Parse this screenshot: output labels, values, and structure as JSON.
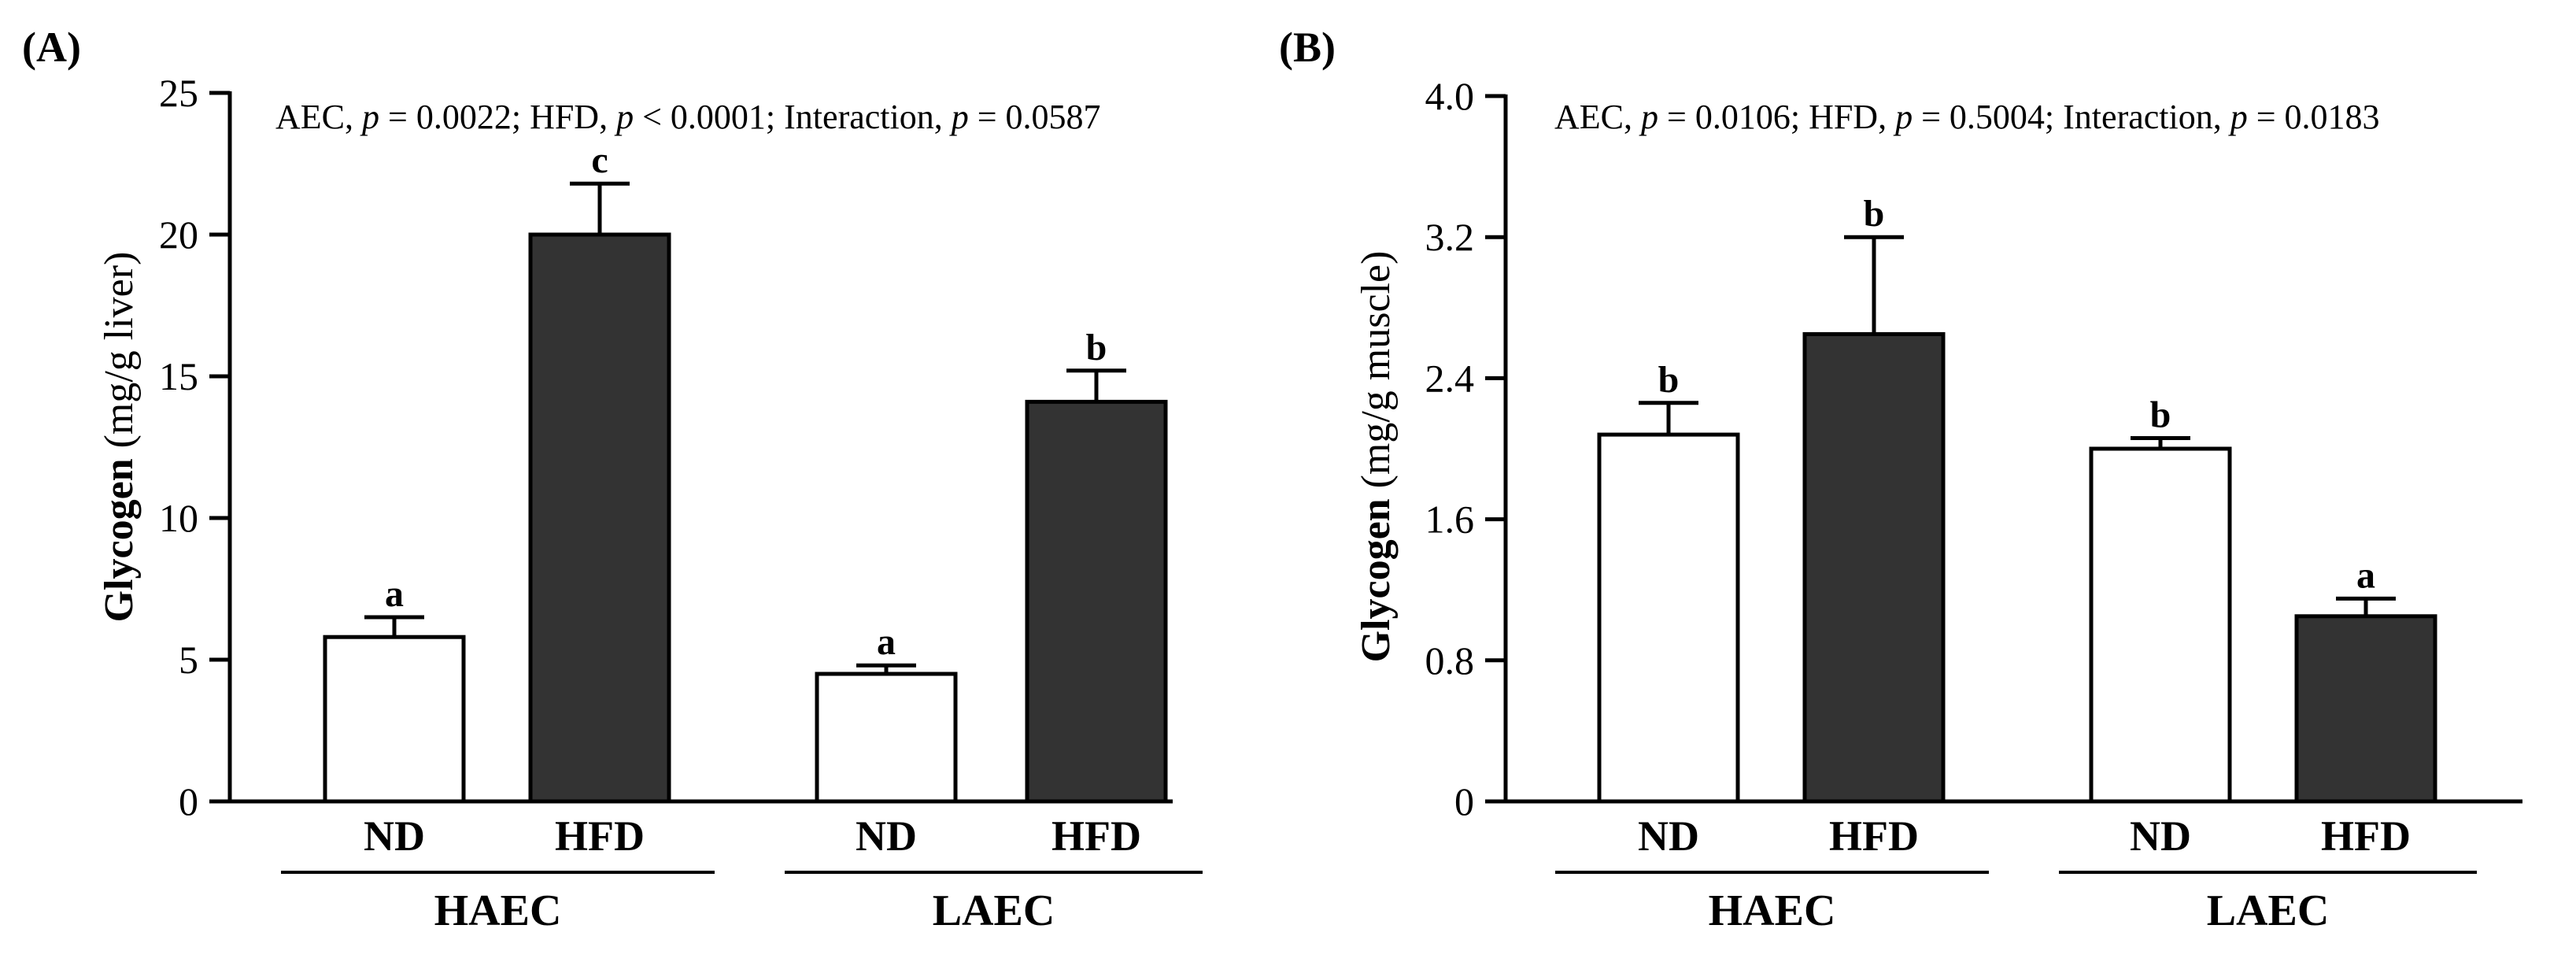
{
  "chart_data": [
    {
      "type": "bar",
      "panel_label": "(A)",
      "stats": {
        "factor1": "AEC",
        "p1": "= 0.0022",
        "factor2": "HFD",
        "p2": "< 0.0001",
        "factor3": "Interaction",
        "p3": "= 0.0587",
        "p_symbol": "p"
      },
      "ylabel_bold": "Glycogen",
      "ylabel_unit": "(mg/g liver)",
      "ylim": [
        0,
        25
      ],
      "yticks": [
        0,
        5,
        10,
        15,
        20,
        25
      ],
      "ytick_labels": [
        "0",
        "5",
        "10",
        "15",
        "20",
        "25"
      ],
      "bars": [
        {
          "category": "ND",
          "group": "HAEC",
          "value": 5.8,
          "error": 0.7,
          "sig": "a",
          "fill": "#ffffff"
        },
        {
          "category": "HFD",
          "group": "HAEC",
          "value": 20.0,
          "error": 1.8,
          "sig": "c",
          "fill": "#333333"
        },
        {
          "category": "ND",
          "group": "LAEC",
          "value": 4.5,
          "error": 0.3,
          "sig": "a",
          "fill": "#ffffff"
        },
        {
          "category": "HFD",
          "group": "LAEC",
          "value": 14.1,
          "error": 1.1,
          "sig": "b",
          "fill": "#333333"
        }
      ],
      "groups": [
        "HAEC",
        "LAEC"
      ]
    },
    {
      "type": "bar",
      "panel_label": "(B)",
      "stats": {
        "factor1": "AEC",
        "p1": "= 0.0106",
        "factor2": "HFD",
        "p2": "= 0.5004",
        "factor3": "Interaction",
        "p3": "= 0.0183",
        "p_symbol": "p"
      },
      "ylabel_bold": "Glycogen",
      "ylabel_unit": "(mg/g muscle)",
      "ylim": [
        0,
        4.0
      ],
      "yticks": [
        0,
        0.8,
        1.6,
        2.4,
        3.2,
        4.0
      ],
      "ytick_labels": [
        "0",
        "0.8",
        "1.6",
        "2.4",
        "3.2",
        "4.0"
      ],
      "bars": [
        {
          "category": "ND",
          "group": "HAEC",
          "value": 2.08,
          "error": 0.18,
          "sig": "b",
          "fill": "#ffffff"
        },
        {
          "category": "HFD",
          "group": "HAEC",
          "value": 2.65,
          "error": 0.55,
          "sig": "b",
          "fill": "#333333"
        },
        {
          "category": "ND",
          "group": "LAEC",
          "value": 2.0,
          "error": 0.06,
          "sig": "b",
          "fill": "#ffffff"
        },
        {
          "category": "HFD",
          "group": "LAEC",
          "value": 1.05,
          "error": 0.1,
          "sig": "a",
          "fill": "#333333"
        }
      ],
      "groups": [
        "HAEC",
        "LAEC"
      ]
    }
  ]
}
